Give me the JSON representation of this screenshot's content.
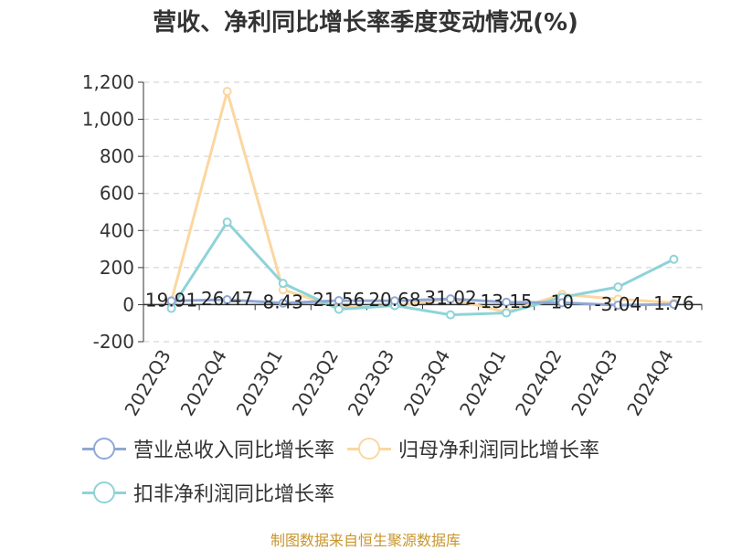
{
  "title": "营收、净利同比增长率季度变动情况(%)",
  "source": "制图数据来自恒生聚源数据库",
  "chart_data": {
    "type": "line",
    "categories": [
      "2022Q3",
      "2022Q4",
      "2023Q1",
      "2023Q2",
      "2023Q3",
      "2023Q4",
      "2024Q1",
      "2024Q2",
      "2024Q3",
      "2024Q4"
    ],
    "ylim": [
      -200,
      1200
    ],
    "yticks": [
      -200,
      0,
      200,
      400,
      600,
      800,
      1000,
      1200
    ],
    "ytick_labels": [
      "-200",
      "0",
      "200",
      "400",
      "600",
      "800",
      "1,000",
      "1,200"
    ],
    "grid": true,
    "legend_position": "bottom",
    "series": [
      {
        "name": "营业总收入同比增长率",
        "color": "#8fa8d4",
        "values": [
          19.91,
          26.47,
          8.43,
          21.56,
          20.68,
          31.02,
          13.15,
          10,
          -3.04,
          1.76
        ],
        "labels": [
          "19.91",
          "26.47",
          "8.43",
          "21.56",
          "20.68",
          "31.02",
          "13.15",
          "10",
          "-3.04",
          "1.76"
        ]
      },
      {
        "name": "归母净利润同比增长率",
        "color": "#fbd7a0",
        "values": [
          20,
          1150,
          80,
          -15,
          -5,
          30,
          -40,
          55,
          30,
          10
        ]
      },
      {
        "name": "扣非净利润同比增长率",
        "color": "#8ed3d8",
        "values": [
          -20,
          445,
          115,
          -25,
          -5,
          -55,
          -45,
          40,
          95,
          245
        ]
      }
    ]
  }
}
